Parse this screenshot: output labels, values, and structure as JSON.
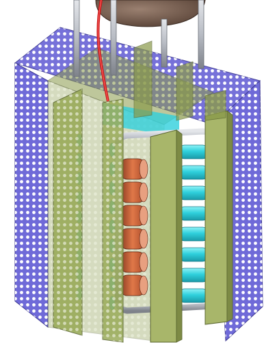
{
  "colors": {
    "background": "#ffffff",
    "perforated_mesh": "#6f6ad8",
    "mesh_holes": "#ffffff",
    "olive_frame": "#a8b66a",
    "olive_frame_dark": "#7d8a45",
    "olive_translucent": "#8a9a4a",
    "cyan_rod": "#2fd0dc",
    "cyan_rod_dark": "#1a9aa8",
    "copper_coil": "#c8623a",
    "copper_coil_dark": "#8a3a22",
    "steel_pipe": "#b8bcc4",
    "red_cable": "#cc1818",
    "sphere": "#7a6050"
  },
  "components": {
    "sphere": "spherical-vessel",
    "support_rods": "vertical-support-rods",
    "cable": "red-cable",
    "mesh_enclosure": "perforated-mesh-enclosure",
    "frame": "olive-support-frame",
    "coils": "copper-coil-stack",
    "rods": "cyan-rod-stack",
    "pipes": "steel-cooling-pipes"
  }
}
